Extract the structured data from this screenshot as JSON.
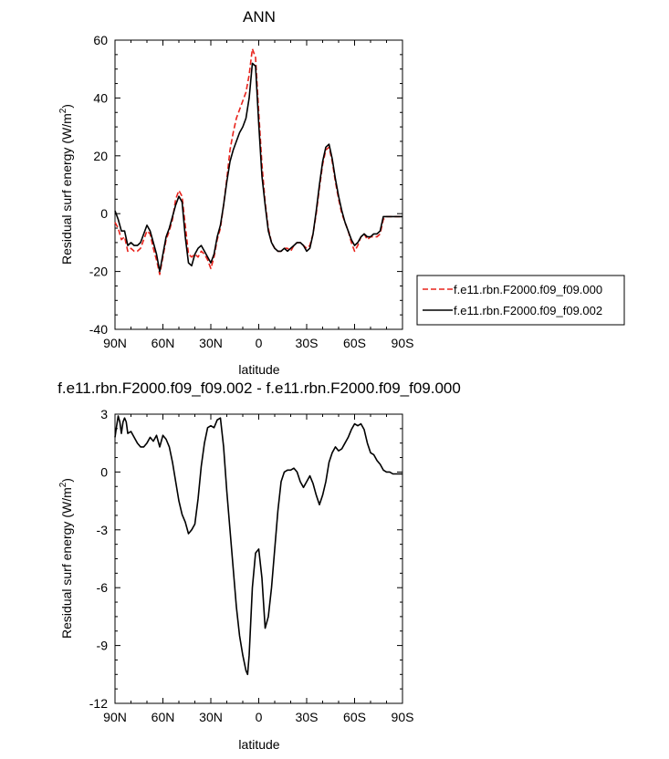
{
  "chart_data": [
    {
      "type": "line",
      "title": "ANN",
      "xlabel": "latitude",
      "ylabel": "Residual surf energy (W/m",
      "ylabel_sup": "2",
      "ylabel_end": ")",
      "xlim": [
        90,
        -90
      ],
      "ylim": [
        -40,
        60
      ],
      "x_ticks": [
        90,
        60,
        30,
        0,
        -30,
        -60,
        -90
      ],
      "x_tick_labels": [
        "90N",
        "60N",
        "30N",
        "0",
        "30S",
        "60S",
        "90S"
      ],
      "y_ticks": [
        -40,
        -20,
        0,
        20,
        40,
        60
      ],
      "y_tick_labels": [
        "-40",
        "-20",
        "0",
        "20",
        "40",
        "60"
      ],
      "legend_position": "outside-right-bottom",
      "series": [
        {
          "name": "f.e11.rbn.F2000.f09_f09.000",
          "color": "#e8231c",
          "dash": "dashed",
          "x": [
            90,
            88,
            86,
            84,
            82,
            80,
            78,
            76,
            74,
            72,
            70,
            68,
            66,
            64,
            62,
            60,
            58,
            56,
            54,
            52,
            50,
            48,
            46,
            44,
            42,
            40,
            38,
            36,
            34,
            32,
            30,
            28,
            26,
            24,
            22,
            20,
            18,
            16,
            14,
            12,
            10,
            8,
            6,
            4,
            2,
            0,
            -2,
            -4,
            -6,
            -8,
            -10,
            -12,
            -14,
            -16,
            -18,
            -20,
            -22,
            -24,
            -26,
            -28,
            -30,
            -32,
            -34,
            -36,
            -38,
            -40,
            -42,
            -44,
            -46,
            -48,
            -50,
            -52,
            -54,
            -56,
            -58,
            -60,
            -62,
            -64,
            -66,
            -68,
            -70,
            -72,
            -74,
            -76,
            -78,
            -80,
            -82,
            -84,
            -86,
            -88,
            -90
          ],
          "y": [
            -3,
            -5,
            -9,
            -8,
            -13,
            -12,
            -13,
            -13,
            -12,
            -9,
            -6,
            -7,
            -12,
            -16,
            -21,
            -15,
            -9,
            -6,
            -2,
            5,
            8,
            6,
            -4,
            -14,
            -15,
            -14,
            -15,
            -13,
            -14,
            -16,
            -19,
            -15,
            -9,
            -5,
            3,
            12,
            22,
            28,
            33,
            36,
            39,
            42,
            48,
            57,
            54,
            35,
            17,
            4,
            -5,
            -10,
            -12,
            -13,
            -13,
            -12,
            -12,
            -13,
            -11,
            -10,
            -10,
            -11,
            -12,
            -11,
            -7,
            0,
            9,
            17,
            22,
            23,
            18,
            11,
            5,
            0,
            -3,
            -6,
            -10,
            -13,
            -11,
            -8,
            -7,
            -9,
            -8,
            -8,
            -8,
            -7,
            -2,
            -1,
            -1,
            -1,
            -1,
            -1,
            -1
          ]
        },
        {
          "name": "f.e11.rbn.F2000.f09_f09.002",
          "color": "#000000",
          "dash": "solid",
          "x": [
            90,
            88,
            86,
            84,
            82,
            80,
            78,
            76,
            74,
            72,
            70,
            68,
            66,
            64,
            62,
            60,
            58,
            56,
            54,
            52,
            50,
            48,
            46,
            44,
            42,
            40,
            38,
            36,
            34,
            32,
            30,
            28,
            26,
            24,
            22,
            20,
            18,
            16,
            14,
            12,
            10,
            8,
            6,
            4,
            2,
            0,
            -2,
            -4,
            -6,
            -8,
            -10,
            -12,
            -14,
            -16,
            -18,
            -20,
            -22,
            -24,
            -26,
            -28,
            -30,
            -32,
            -34,
            -36,
            -38,
            -40,
            -42,
            -44,
            -46,
            -48,
            -50,
            -52,
            -54,
            -56,
            -58,
            -60,
            -62,
            -64,
            -66,
            -68,
            -70,
            -72,
            -74,
            -76,
            -78,
            -80,
            -82,
            -84,
            -86,
            -88,
            -90
          ],
          "y": [
            1,
            -2,
            -6,
            -6,
            -11,
            -10,
            -11,
            -11,
            -10,
            -7,
            -4,
            -6,
            -10,
            -14,
            -20,
            -14,
            -8,
            -5,
            -1,
            3,
            6,
            4,
            -8,
            -17,
            -18,
            -14,
            -12,
            -11,
            -13,
            -15,
            -17,
            -14,
            -8,
            -4,
            3,
            11,
            18,
            22,
            25,
            28,
            30,
            33,
            40,
            52,
            51,
            31,
            13,
            3,
            -6,
            -10,
            -12,
            -13,
            -13,
            -12,
            -13,
            -12,
            -11,
            -10,
            -10,
            -11,
            -13,
            -12,
            -7,
            1,
            10,
            18,
            23,
            24,
            19,
            12,
            6,
            1,
            -3,
            -6,
            -9,
            -11,
            -10,
            -8,
            -7,
            -8,
            -8,
            -7,
            -7,
            -6,
            -1,
            -1,
            -1,
            -1,
            -1,
            -1,
            -1
          ]
        }
      ]
    },
    {
      "type": "line",
      "title": "f.e11.rbn.F2000.f09_f09.002 - f.e11.rbn.F2000.f09_f09.000",
      "xlabel": "latitude",
      "ylabel": "Residual surf energy (W/m",
      "ylabel_sup": "2",
      "ylabel_end": ")",
      "xlim": [
        90,
        -90
      ],
      "ylim": [
        -12,
        3
      ],
      "x_ticks": [
        90,
        60,
        30,
        0,
        -30,
        -60,
        -90
      ],
      "x_tick_labels": [
        "90N",
        "60N",
        "30N",
        "0",
        "30S",
        "60S",
        "90S"
      ],
      "y_ticks": [
        -12,
        -9,
        -6,
        -3,
        0,
        3
      ],
      "y_tick_labels": [
        "-12",
        "-9",
        "-6",
        "-3",
        "0",
        "3"
      ],
      "series": [
        {
          "color": "#000000",
          "dash": "solid",
          "x": [
            90,
            89,
            88,
            87,
            86,
            85,
            84,
            83,
            82,
            80,
            78,
            76,
            74,
            72,
            70,
            68,
            66,
            64,
            62,
            60,
            58,
            56,
            54,
            52,
            50,
            48,
            46,
            44,
            43,
            42,
            40,
            38,
            36,
            34,
            32,
            30,
            28,
            26,
            24,
            22,
            20,
            18,
            16,
            14,
            12,
            10,
            8,
            7,
            6,
            4,
            2,
            0,
            -2,
            -4,
            -6,
            -8,
            -10,
            -12,
            -14,
            -16,
            -18,
            -20,
            -22,
            -24,
            -26,
            -28,
            -30,
            -32,
            -34,
            -36,
            -38,
            -40,
            -42,
            -44,
            -46,
            -48,
            -50,
            -52,
            -54,
            -56,
            -58,
            -60,
            -62,
            -64,
            -66,
            -68,
            -70,
            -72,
            -74,
            -76,
            -78,
            -80,
            -82,
            -84,
            -86,
            -88,
            -90
          ],
          "y": [
            1.8,
            2.4,
            2.9,
            2.6,
            2.0,
            2.6,
            2.8,
            2.6,
            2.0,
            2.1,
            1.8,
            1.5,
            1.3,
            1.3,
            1.5,
            1.8,
            1.6,
            1.9,
            1.3,
            1.9,
            1.7,
            1.3,
            0.5,
            -0.5,
            -1.5,
            -2.2,
            -2.6,
            -3.2,
            -3.1,
            -3.0,
            -2.7,
            -1.4,
            0.3,
            1.5,
            2.3,
            2.4,
            2.3,
            2.7,
            2.8,
            1.3,
            -1.0,
            -3.0,
            -5.0,
            -7.0,
            -8.5,
            -9.5,
            -10.3,
            -10.5,
            -9.5,
            -6.0,
            -4.2,
            -4.0,
            -5.5,
            -8.1,
            -7.5,
            -6.0,
            -4.0,
            -2.0,
            -0.5,
            0.0,
            0.1,
            0.1,
            0.2,
            0.0,
            -0.5,
            -0.8,
            -0.5,
            -0.2,
            -0.6,
            -1.2,
            -1.7,
            -1.2,
            -0.5,
            0.5,
            1.0,
            1.3,
            1.1,
            1.2,
            1.5,
            1.8,
            2.2,
            2.5,
            2.4,
            2.5,
            2.2,
            1.5,
            1.0,
            0.9,
            0.6,
            0.4,
            0.1,
            0.0,
            0.0,
            -0.1,
            -0.1,
            -0.1,
            -0.1
          ]
        }
      ]
    }
  ]
}
